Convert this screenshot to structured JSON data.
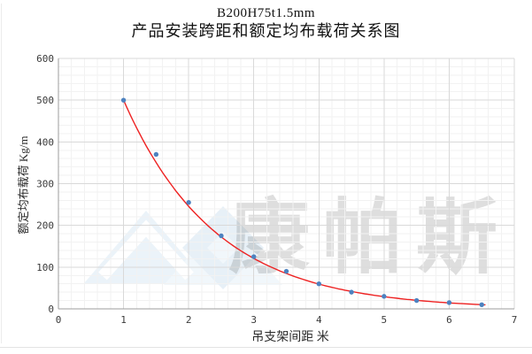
{
  "title": {
    "line1": "B200H75t1.5mm",
    "line2": "产品安装跨距和额定均布载荷关系图"
  },
  "watermark": {
    "text": "康帕斯",
    "logo_icon": "double-mountain-diamond-logo",
    "text_color": "#adadad",
    "logo_color": "#dcebf5"
  },
  "chart_data": {
    "type": "scatter",
    "title": "B200H75t1.5mm 产品安装跨距和额定均布载荷关系图",
    "xlabel": "吊支架间距  米",
    "ylabel": "额定均布载荷 Kg/m",
    "x": [
      1,
      1.5,
      2,
      2.5,
      3,
      3.5,
      4,
      4.5,
      5,
      5.5,
      6,
      6.5
    ],
    "values": [
      500,
      370,
      255,
      175,
      125,
      90,
      60,
      40,
      30,
      20,
      15,
      10
    ],
    "xlim": [
      0,
      7
    ],
    "ylim": [
      0,
      600
    ],
    "x_major_unit": 1,
    "x_minor_unit": 0.2,
    "y_major_unit": 100,
    "y_minor_unit": 20,
    "x_ticks": [
      "0",
      "1",
      "2",
      "3",
      "4",
      "5",
      "6",
      "7"
    ],
    "y_ticks": [
      "0",
      "100",
      "200",
      "300",
      "400",
      "500",
      "600"
    ],
    "grid": "major+minor",
    "legend": "none",
    "trendline": {
      "type": "exponential",
      "a": 500,
      "k": 0.71,
      "x_start": 1.0,
      "x_end": 6.55
    },
    "colors": {
      "marker": "#4d82c0",
      "trendline": "#ee2222",
      "grid_major": "#d9d9d9",
      "grid_minor": "#f2f2f2",
      "axis_line": "#9c9c9c",
      "tick_label": "#3a3a3a"
    }
  }
}
